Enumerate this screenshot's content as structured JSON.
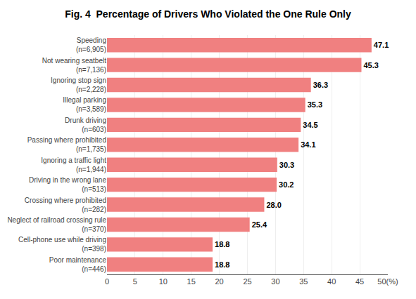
{
  "chart_data": {
    "type": "bar",
    "orientation": "horizontal",
    "title": "Fig. 4  Percentage of Drivers Who Violated the One Rule Only",
    "categories": [
      "Poor maintenance\n(n=446)",
      "Cell-phone use while driving\n(n=398)",
      "Neglect of railroad crossing rule\n(n=370)",
      "Crossing where prohibited\n(n=282)",
      "Driving in the wrong lane\n(n=513)",
      "Ignoring a traffic light\n(n=1,944)",
      "Passing where prohibited\n(n=1,735)",
      "Drunk driving\n(n=603)",
      "Illegal parking\n(n=3,589)",
      "Ignoring stop sign\n(n=2,228)",
      "Not wearing seatbelt\n(n=7,136)",
      "Speeding\n(n=6,905)"
    ],
    "values": [
      18.8,
      18.8,
      25.4,
      28.0,
      30.2,
      30.3,
      34.1,
      34.5,
      35.3,
      36.3,
      45.3,
      47.1
    ],
    "value_labels": [
      "18.8",
      "18.8",
      "25.4",
      "28.0",
      "30.2",
      "30.3",
      "34.1",
      "34.5",
      "35.3",
      "36.3",
      "45.3",
      "47.1"
    ],
    "data_labels": true,
    "color": "#F08080",
    "xlim": [
      0,
      50
    ],
    "xticks": [
      0,
      5,
      10,
      15,
      20,
      25,
      30,
      35,
      40,
      45,
      {
        "value": 50,
        "label": "50(%)"
      }
    ],
    "grid": true
  }
}
